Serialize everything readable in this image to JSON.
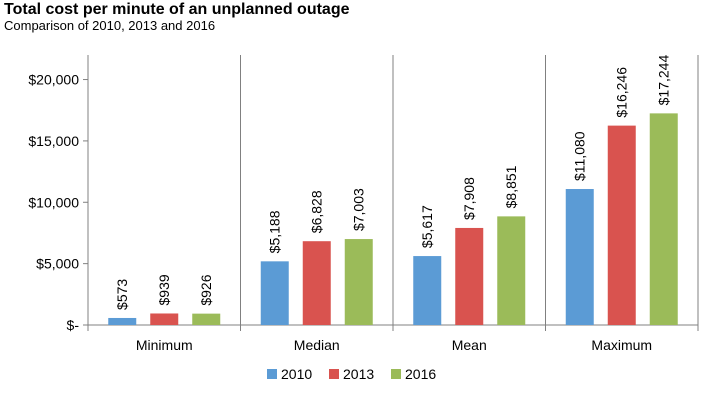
{
  "chart_data": {
    "type": "bar",
    "title": "Total cost per minute of an unplanned outage",
    "subtitle": "Comparison of 2010, 2013 and 2016",
    "categories": [
      "Minimum",
      "Median",
      "Mean",
      "Maximum"
    ],
    "series": [
      {
        "name": "2010",
        "color": "#5b9bd5",
        "values": [
          573,
          5188,
          5617,
          11080
        ],
        "labels": [
          "$573",
          "$5,188",
          "$5,617",
          "$11,080"
        ]
      },
      {
        "name": "2013",
        "color": "#d9534f",
        "values": [
          939,
          6828,
          7908,
          16246
        ],
        "labels": [
          "$939",
          "$6,828",
          "$7,908",
          "$16,246"
        ]
      },
      {
        "name": "2016",
        "color": "#9bbb59",
        "values": [
          926,
          7003,
          8851,
          17244
        ],
        "labels": [
          "$926",
          "$7,003",
          "$8,851",
          "$17,244"
        ]
      }
    ],
    "ylim": [
      0,
      22000
    ],
    "yticks": [
      0,
      5000,
      10000,
      15000,
      20000
    ],
    "ytick_labels": [
      "$-",
      "$5,000",
      "$10,000",
      "$15,000",
      "$20,000"
    ],
    "xlabel": "",
    "ylabel": "",
    "grid": false,
    "legend_position": "bottom"
  }
}
